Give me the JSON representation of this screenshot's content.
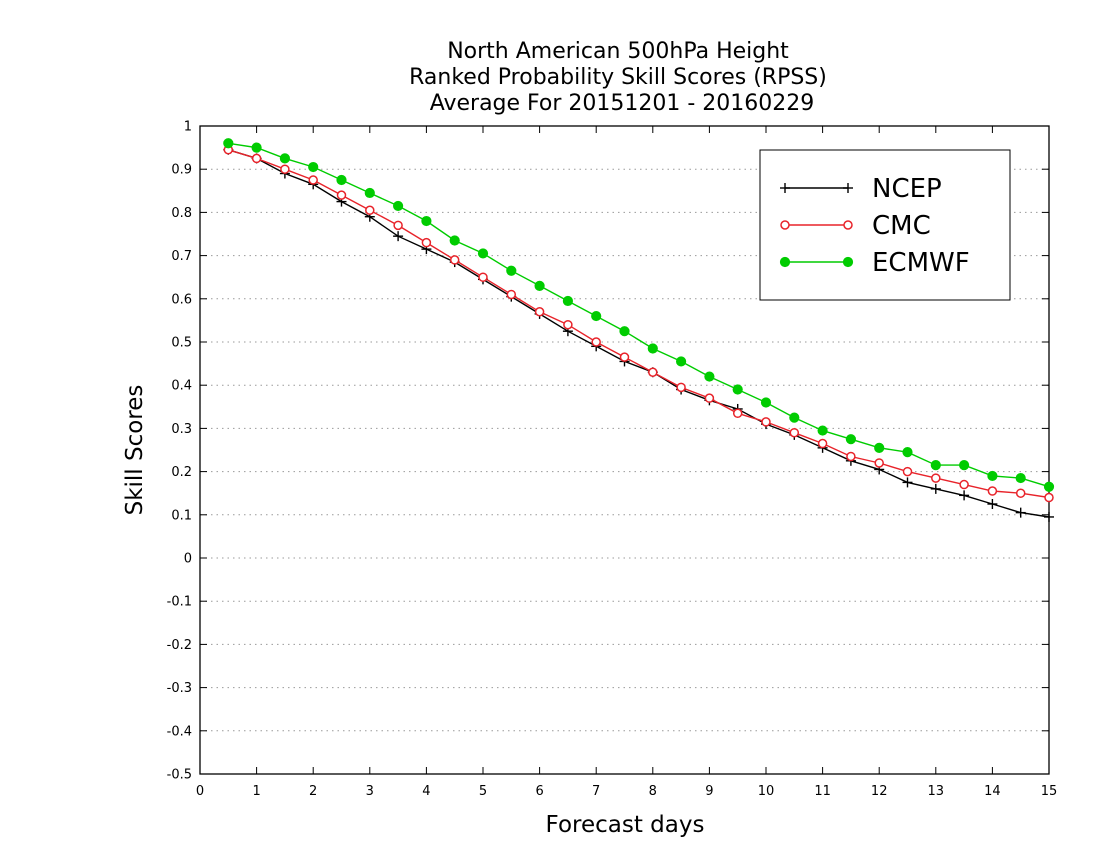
{
  "chart_data": {
    "type": "line",
    "title_lines": [
      "North American 500hPa Height",
      "Ranked Probability Skill Scores (RPSS)",
      "Average For 20151201 - 20160229"
    ],
    "xlabel": "Forecast days",
    "ylabel": "Skill Scores",
    "xlim": [
      0,
      15
    ],
    "ylim": [
      -0.5,
      1
    ],
    "x_ticks": [
      "0",
      "1",
      "2",
      "3",
      "4",
      "5",
      "6",
      "7",
      "8",
      "9",
      "10",
      "11",
      "12",
      "13",
      "14",
      "15"
    ],
    "y_ticks": [
      "1",
      "0.9",
      "0.8",
      "0.7",
      "0.6",
      "0.5",
      "0.4",
      "0.3",
      "0.2",
      "0.1",
      "0",
      "-0.1",
      "-0.2",
      "-0.3",
      "-0.4",
      "-0.5"
    ],
    "grid": "horizontal dotted",
    "legend_position": "top-right",
    "x": [
      0.5,
      1,
      1.5,
      2,
      2.5,
      3,
      3.5,
      4,
      4.5,
      5,
      5.5,
      6,
      6.5,
      7,
      7.5,
      8,
      8.5,
      9,
      9.5,
      10,
      10.5,
      11,
      11.5,
      12,
      12.5,
      13,
      13.5,
      14,
      14.5,
      15
    ],
    "series": [
      {
        "name": "NCEP",
        "color": "#000000",
        "marker": "plus",
        "values": [
          0.945,
          0.925,
          0.89,
          0.865,
          0.825,
          0.79,
          0.745,
          0.715,
          0.685,
          0.645,
          0.605,
          0.565,
          0.525,
          0.49,
          0.455,
          0.43,
          0.39,
          0.365,
          0.345,
          0.31,
          0.285,
          0.255,
          0.225,
          0.205,
          0.175,
          0.16,
          0.145,
          0.125,
          0.105,
          0.095
        ]
      },
      {
        "name": "CMC",
        "color": "#e8232a",
        "marker": "open-circle",
        "values": [
          0.945,
          0.925,
          0.9,
          0.875,
          0.84,
          0.805,
          0.77,
          0.73,
          0.69,
          0.65,
          0.61,
          0.57,
          0.54,
          0.5,
          0.465,
          0.43,
          0.395,
          0.37,
          0.335,
          0.315,
          0.29,
          0.265,
          0.235,
          0.22,
          0.2,
          0.185,
          0.17,
          0.155,
          0.15,
          0.14
        ]
      },
      {
        "name": "ECMWF",
        "color": "#00cc00",
        "marker": "filled-circle",
        "values": [
          0.96,
          0.95,
          0.925,
          0.905,
          0.875,
          0.845,
          0.815,
          0.78,
          0.735,
          0.705,
          0.665,
          0.63,
          0.595,
          0.56,
          0.525,
          0.485,
          0.455,
          0.42,
          0.39,
          0.36,
          0.325,
          0.295,
          0.275,
          0.255,
          0.245,
          0.215,
          0.215,
          0.19,
          0.185,
          0.165
        ]
      }
    ]
  }
}
